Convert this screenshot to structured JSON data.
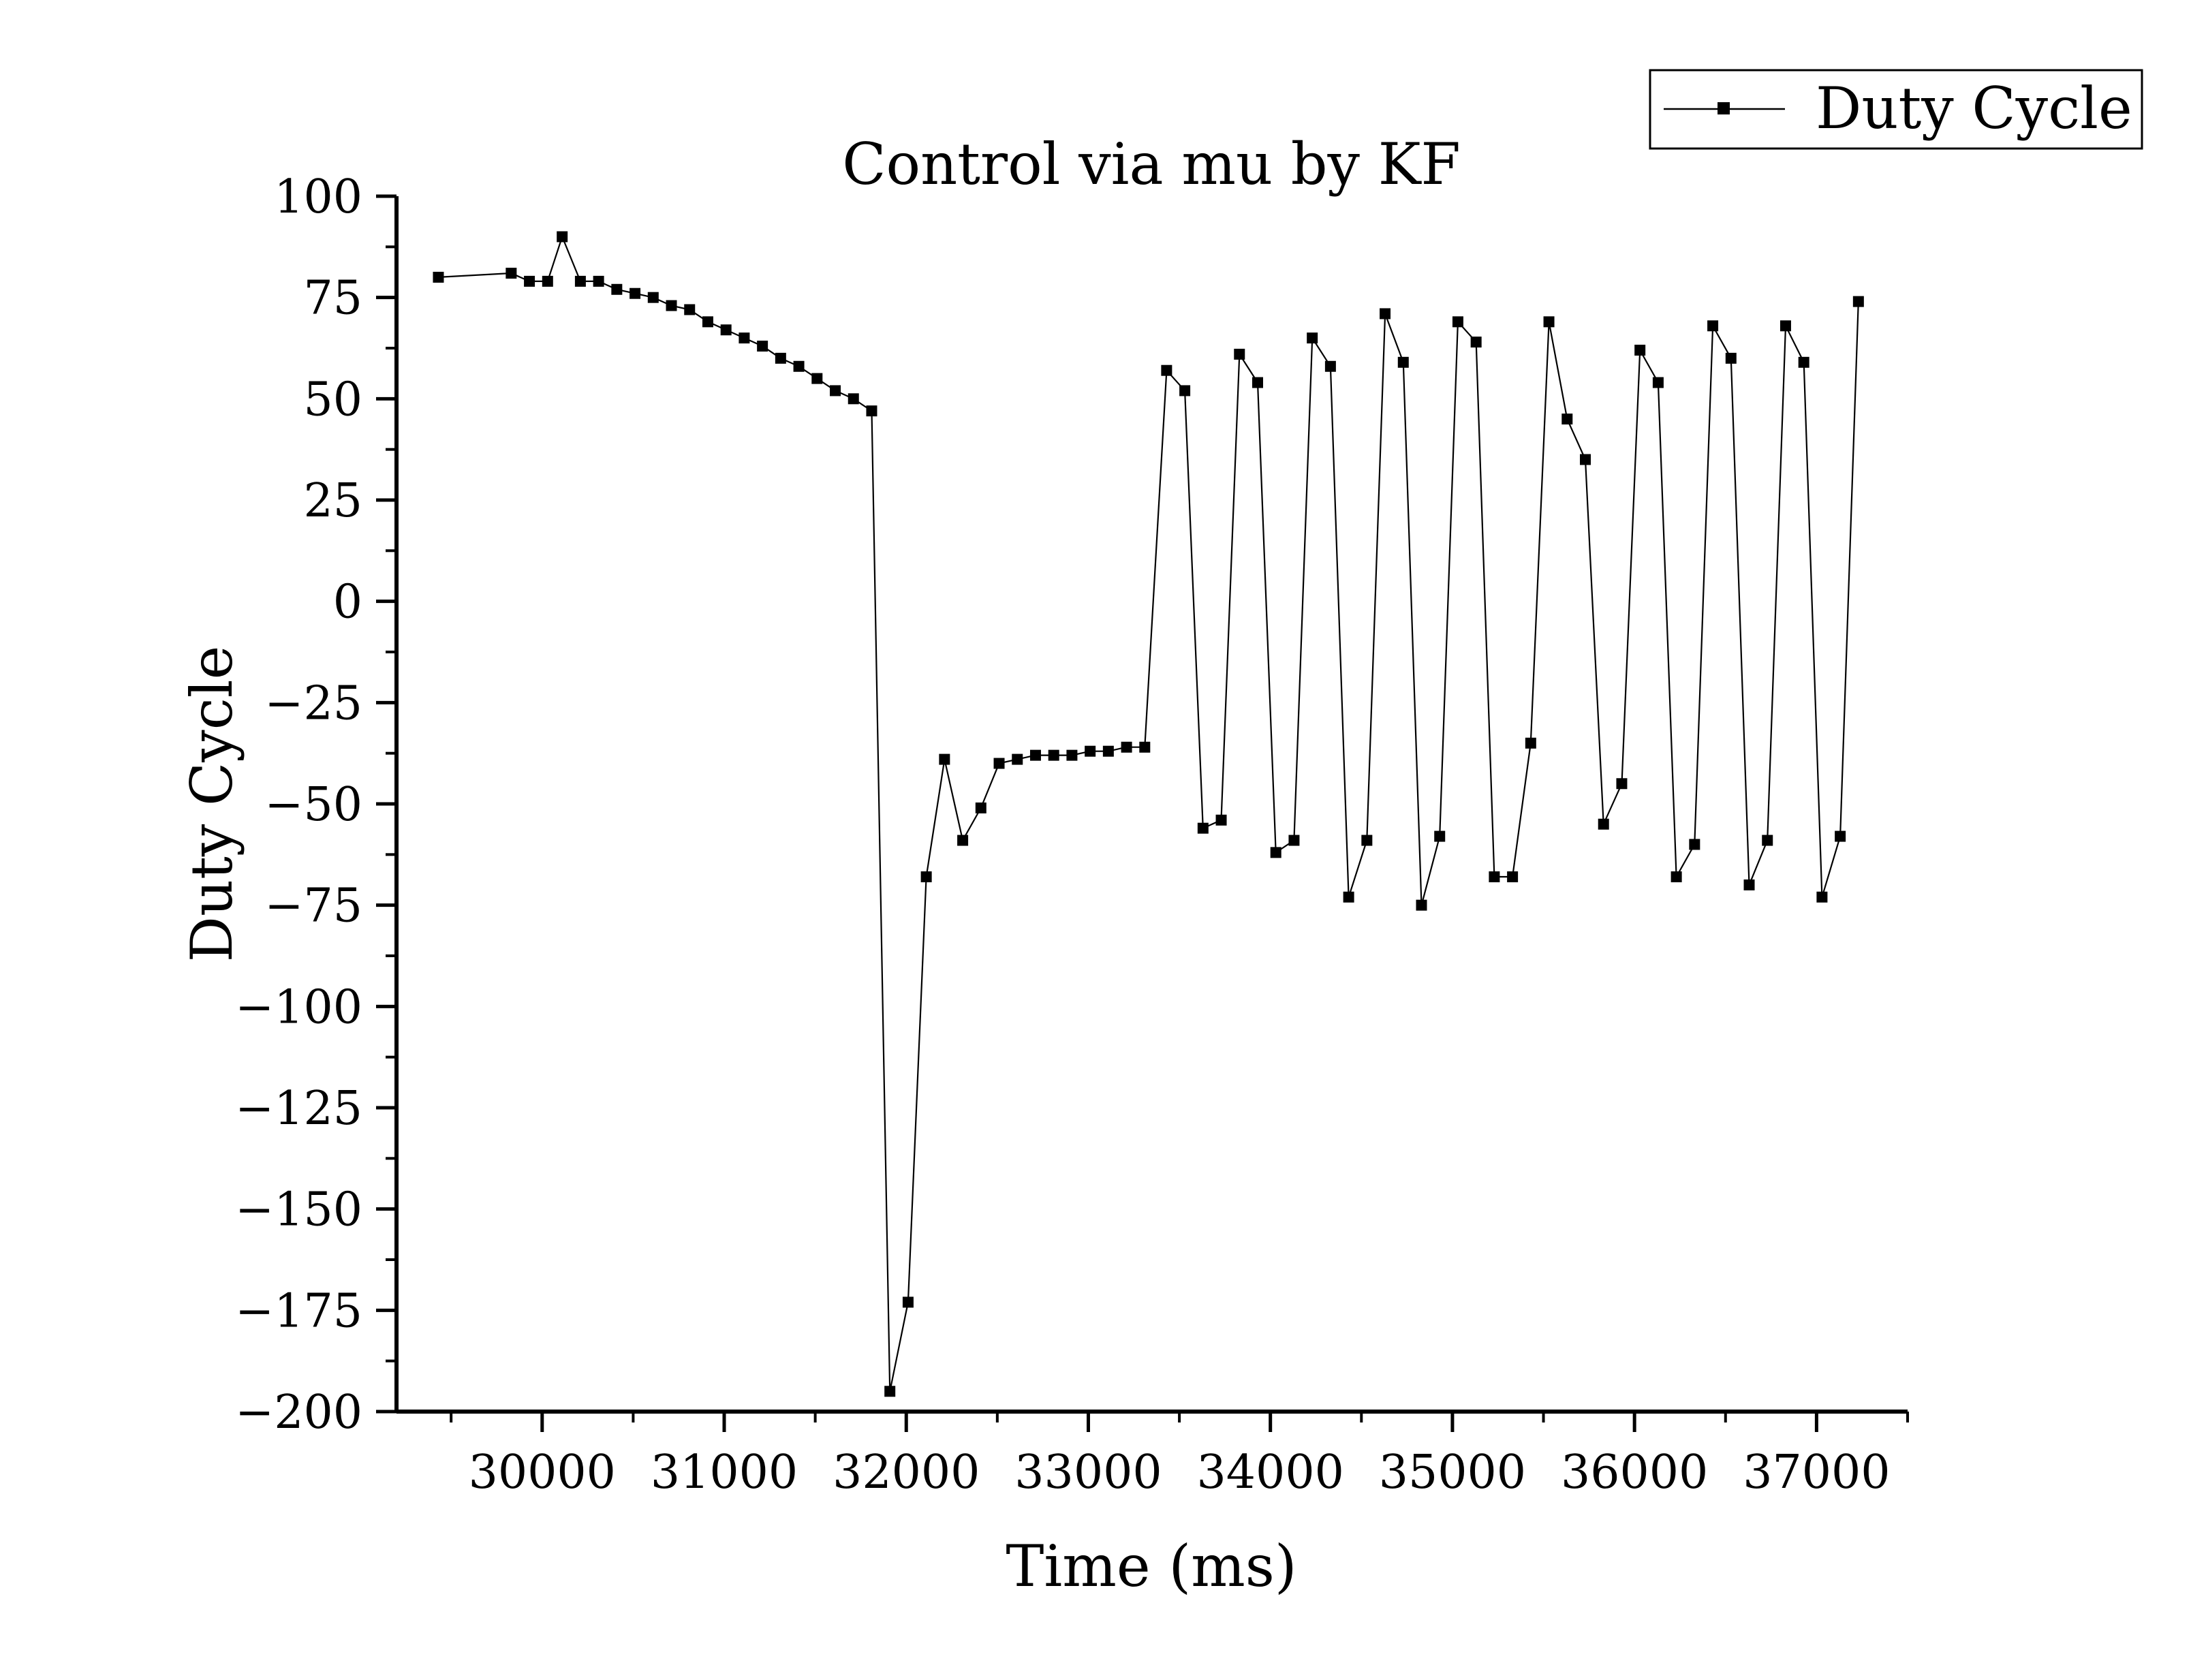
{
  "chart_data": {
    "type": "line",
    "title": "Control via mu by KF",
    "xlabel": "Time (ms)",
    "ylabel": "Duty Cycle",
    "xlim": [
      29200,
      37500
    ],
    "ylim": [
      -200,
      100
    ],
    "xticks": [
      30000,
      31000,
      32000,
      33000,
      34000,
      35000,
      36000,
      37000
    ],
    "yticks": [
      100,
      75,
      50,
      25,
      0,
      -25,
      -50,
      -75,
      -100,
      -125,
      -150,
      -175,
      -200
    ],
    "ytick_labels": [
      "100",
      "75",
      "50",
      "25",
      "0",
      "−25",
      "−50",
      "−75",
      "−100",
      "−125",
      "−150",
      "−175",
      "−200"
    ],
    "grid": false,
    "legend_position": "top-right",
    "series": [
      {
        "name": "Duty Cycle",
        "color": "#000000",
        "marker": "square",
        "x": [
          29430,
          29830,
          29930,
          30030,
          30110,
          30210,
          30310,
          30410,
          30510,
          30610,
          30710,
          30810,
          30910,
          31010,
          31110,
          31210,
          31310,
          31410,
          31510,
          31610,
          31710,
          31810,
          31910,
          32010,
          32110,
          32210,
          32310,
          32410,
          32510,
          32610,
          32710,
          32810,
          32910,
          33010,
          33110,
          33210,
          33310,
          33430,
          33530,
          33630,
          33730,
          33830,
          33930,
          34030,
          34130,
          34230,
          34330,
          34430,
          34530,
          34630,
          34730,
          34830,
          34930,
          35030,
          35130,
          35230,
          35330,
          35430,
          35530,
          35630,
          35730,
          35830,
          35930,
          36030,
          36130,
          36230,
          36330,
          36430,
          36530,
          36630,
          36730,
          36830,
          36930,
          37030,
          37130,
          37230
        ],
        "y": [
          80,
          81,
          79,
          79,
          90,
          79,
          79,
          77,
          76,
          75,
          73,
          72,
          69,
          67,
          65,
          63,
          60,
          58,
          55,
          52,
          50,
          47,
          -195,
          -173,
          -68,
          -39,
          -59,
          -51,
          -40,
          -39,
          -38,
          -38,
          -38,
          -37,
          -37,
          -36,
          -36,
          57,
          52,
          -56,
          -54,
          61,
          54,
          -62,
          -59,
          65,
          58,
          -73,
          -59,
          71,
          59,
          -75,
          -58,
          69,
          64,
          -68,
          -68,
          -35,
          69,
          45,
          35,
          -55,
          -45,
          62,
          54,
          -68,
          -60,
          68,
          60,
          -70,
          -59,
          68,
          59,
          -73,
          -58,
          74
        ]
      }
    ]
  }
}
